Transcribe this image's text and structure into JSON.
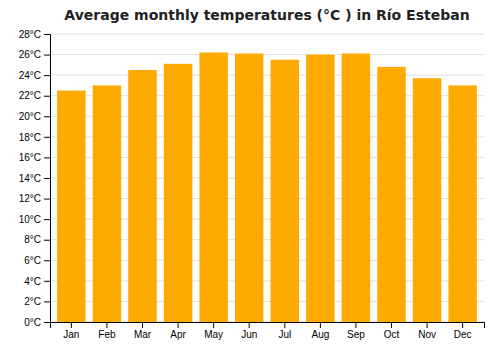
{
  "chart_data": {
    "type": "bar",
    "title": "Average monthly temperatures (°C ) in Río Esteban",
    "categories": [
      "Jan",
      "Feb",
      "Mar",
      "Apr",
      "May",
      "Jun",
      "Jul",
      "Aug",
      "Sep",
      "Oct",
      "Nov",
      "Dec"
    ],
    "values": [
      22.5,
      23.0,
      24.5,
      25.1,
      26.2,
      26.1,
      25.5,
      26.0,
      26.1,
      24.8,
      23.7,
      23.0
    ],
    "color": "#FFAA00",
    "ylim": [
      0,
      28
    ],
    "yticks": [
      {
        "value": 0,
        "label": "0°C"
      },
      {
        "value": 2,
        "label": "2°C"
      },
      {
        "value": 4,
        "label": "4°C"
      },
      {
        "value": 6,
        "label": "6°C"
      },
      {
        "value": 8,
        "label": "8°C"
      },
      {
        "value": 10,
        "label": "10°C"
      },
      {
        "value": 12,
        "label": "12°C"
      },
      {
        "value": 14,
        "label": "14°C"
      },
      {
        "value": 16,
        "label": "16°C"
      },
      {
        "value": 18,
        "label": "18°C"
      },
      {
        "value": 20,
        "label": "20°C"
      },
      {
        "value": 22,
        "label": "22°C"
      },
      {
        "value": 24,
        "label": "24°C"
      },
      {
        "value": 26,
        "label": "26°C"
      },
      {
        "value": 28,
        "label": "28°C"
      }
    ],
    "grid": true
  }
}
